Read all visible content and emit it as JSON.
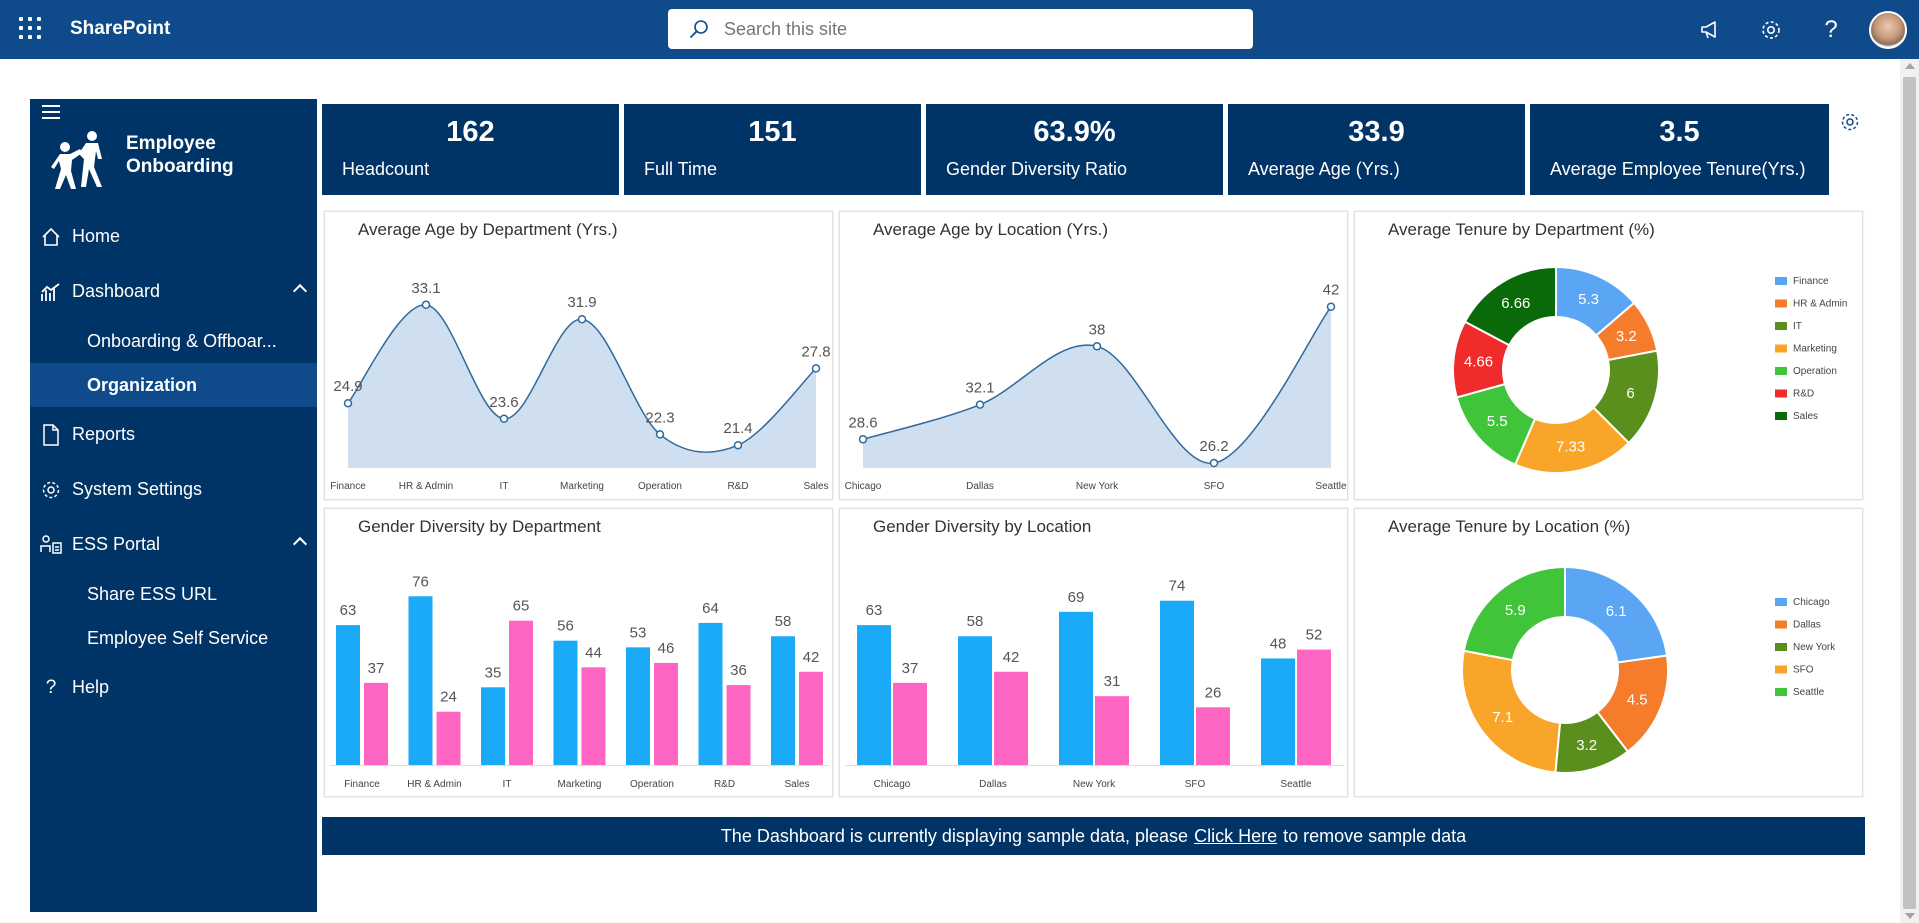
{
  "topbar": {
    "brand": "SharePoint",
    "search_placeholder": "Search this site"
  },
  "sidebar": {
    "logo_line1": "Employee",
    "logo_line2": "Onboarding",
    "items": [
      {
        "label": "Home",
        "icon": "home-icon"
      },
      {
        "label": "Dashboard",
        "icon": "chart-icon"
      },
      {
        "label": "Onboarding & Offboar...",
        "sub": true
      },
      {
        "label": "Organization",
        "sub": true,
        "active": true
      },
      {
        "label": "Reports",
        "icon": "document-icon"
      },
      {
        "label": "System Settings",
        "icon": "gear-icon"
      },
      {
        "label": "ESS Portal",
        "icon": "ess-icon"
      },
      {
        "label": "Share ESS URL",
        "sub": true
      },
      {
        "label": "Employee Self Service",
        "sub": true
      },
      {
        "label": "Help",
        "icon": "help-icon"
      }
    ]
  },
  "kpis": [
    {
      "value": "162",
      "label": "Headcount"
    },
    {
      "value": "151",
      "label": "Full Time"
    },
    {
      "value": "63.9%",
      "label": "Gender Diversity Ratio"
    },
    {
      "value": "33.9",
      "label": "Average Age (Yrs.)"
    },
    {
      "value": "3.5",
      "label": "Average Employee Tenure(Yrs.)"
    }
  ],
  "banner": {
    "before": "The Dashboard is currently displaying sample data, please",
    "link": "Click Here",
    "after": "to remove sample data"
  },
  "colors": {
    "navy": "#003366",
    "topbar": "#0f4a8a",
    "male": "#1aaaf7",
    "female": "#ff66c4",
    "area_fill": "#cfdff0",
    "line": "#2e6a9e"
  },
  "chart_data": [
    {
      "type": "area",
      "title": "Average Age by Department (Yrs.)",
      "categories": [
        "Finance",
        "HR & Admin",
        "IT",
        "Marketing",
        "Operation",
        "R&D",
        "Sales"
      ],
      "values": [
        24.9,
        33.1,
        23.6,
        31.9,
        22.3,
        21.4,
        27.8
      ]
    },
    {
      "type": "area",
      "title": "Average Age by Location (Yrs.)",
      "categories": [
        "Chicago",
        "Dallas",
        "New York",
        "SFO",
        "Seattle"
      ],
      "values": [
        28.6,
        32.1,
        38,
        26.2,
        42
      ]
    },
    {
      "type": "pie",
      "title": "Average Tenure by Department (%)",
      "categories": [
        "Finance",
        "HR & Admin",
        "IT",
        "Marketing",
        "Operation",
        "R&D",
        "Sales"
      ],
      "values": [
        5.3,
        3.2,
        6,
        7.33,
        5.5,
        4.66,
        6.66
      ],
      "colors": [
        "#5aa6f5",
        "#f57c2a",
        "#5a8f1e",
        "#f9a52a",
        "#3fc43a",
        "#f02b2b",
        "#0a6a0a"
      ],
      "legend": "right"
    },
    {
      "type": "bar",
      "title": "Gender Diversity by Department",
      "categories": [
        "Finance",
        "HR & Admin",
        "IT",
        "Marketing",
        "Operation",
        "R&D",
        "Sales"
      ],
      "series": [
        {
          "values": [
            63,
            76,
            35,
            56,
            53,
            64,
            58
          ]
        },
        {
          "values": [
            37,
            24,
            65,
            44,
            46,
            36,
            42
          ]
        }
      ]
    },
    {
      "type": "bar",
      "title": "Gender Diversity by Location",
      "categories": [
        "Chicago",
        "Dallas",
        "New York",
        "SFO",
        "Seattle"
      ],
      "series": [
        {
          "values": [
            63,
            58,
            69,
            74,
            48
          ]
        },
        {
          "values": [
            37,
            42,
            31,
            26,
            52
          ]
        }
      ]
    },
    {
      "type": "pie",
      "title": "Average Tenure by Location (%)",
      "categories": [
        "Chicago",
        "Dallas",
        "New York",
        "SFO",
        "Seattle"
      ],
      "values": [
        6.1,
        4.5,
        3.2,
        7.1,
        5.9
      ],
      "colors": [
        "#5aa6f5",
        "#f57c2a",
        "#5a8f1e",
        "#f9a52a",
        "#3fc43a"
      ],
      "legend": "right"
    }
  ]
}
